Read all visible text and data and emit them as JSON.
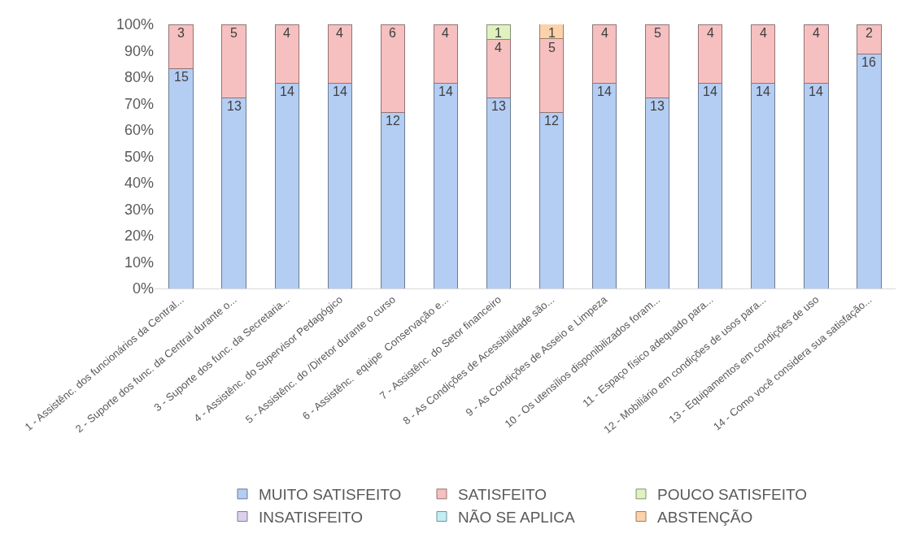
{
  "chart_data": {
    "type": "bar",
    "stacked": true,
    "categories": [
      "1 - Assistênc. dos funcionários da Central...",
      "2 - Suporte dos func. da Central durante o...",
      "3 - Suporte dos func. da Secretaria...",
      "4 - Assistênc. do Supervisor Pedagógico",
      "5 - Assistênc. do /Diretor durante o curso",
      "6 - Assistênc.  equipe  Conservação e...",
      "7 - Assistênc. do Setor financeiro",
      "8 - As Condições de Acessibilidade são...",
      "9 - As Condições de Asseio e Limpeza",
      "10 - Os utensílios disponibilizados foram...",
      "11 - Espaço físico adequado para...",
      "12 - Mobiliário em condições de usos para...",
      "13 - Equipamentos em condições de uso",
      "14 - Como você considera sua satisfação..."
    ],
    "series": [
      {
        "name": "MUITO SATISFEITO",
        "color": "#b4cdf3",
        "values": [
          83.3,
          72.2,
          77.8,
          77.8,
          66.7,
          77.8,
          72.2,
          66.7,
          77.8,
          72.2,
          77.8,
          77.8,
          77.8,
          88.9
        ]
      },
      {
        "name": "SATISFEITO",
        "color": "#f6c0c0",
        "values": [
          16.7,
          27.8,
          22.2,
          22.2,
          33.3,
          22.2,
          22.2,
          27.8,
          22.2,
          27.8,
          22.2,
          22.2,
          22.2,
          11.1
        ]
      },
      {
        "name": "POUCO SATISFEITO",
        "color": "#dff2c0",
        "values": [
          null,
          null,
          null,
          null,
          null,
          null,
          5.6,
          null,
          null,
          null,
          null,
          null,
          null,
          null
        ]
      },
      {
        "name": "INSATISFEITO",
        "color": "#dcd0ee",
        "values": [
          null,
          null,
          null,
          null,
          null,
          null,
          null,
          null,
          null,
          null,
          null,
          null,
          null,
          null
        ]
      },
      {
        "name": "NÃO SE APLICA",
        "color": "#c4eef6",
        "values": [
          null,
          null,
          null,
          null,
          null,
          null,
          null,
          null,
          null,
          null,
          null,
          null,
          null,
          null
        ]
      },
      {
        "name": "ABSTENÇÃO",
        "color": "#fcd2aa",
        "values": [
          null,
          null,
          null,
          null,
          null,
          null,
          null,
          5.6,
          null,
          null,
          null,
          null,
          null,
          null
        ]
      }
    ],
    "annotations": [
      {
        "text": "15",
        "x": "1 - Assistênc. dos funcionários da Central...",
        "y": 83.3
      },
      {
        "text": "3",
        "x": "1 - Assistênc. dos funcionários da Central...",
        "y": 100
      },
      {
        "text": "13",
        "x": "2 - Suporte dos func. da Central durante o...",
        "y": 72.2
      },
      {
        "text": "5",
        "x": "2 - Suporte dos func. da Central durante o...",
        "y": 100
      },
      {
        "text": "14",
        "x": "3 - Suporte dos func. da Secretaria...",
        "y": 77.8
      },
      {
        "text": "4",
        "x": "3 - Suporte dos func. da Secretaria...",
        "y": 100
      },
      {
        "text": "14",
        "x": "4 - Assistênc. do Supervisor Pedagógico",
        "y": 77.8
      },
      {
        "text": "4",
        "x": "4 - Assistênc. do Supervisor Pedagógico",
        "y": 100
      },
      {
        "text": "12",
        "x": "5 - Assistênc. do /Diretor durante o curso",
        "y": 66.7
      },
      {
        "text": "6",
        "x": "5 - Assistênc. do /Diretor durante o curso",
        "y": 100
      },
      {
        "text": "14",
        "x": "6 - Assistênc.  equipe  Conservação e...",
        "y": 77.8
      },
      {
        "text": "4",
        "x": "6 - Assistênc.  equipe  Conservação e...",
        "y": 100
      },
      {
        "text": "13",
        "x": "7 - Assistênc. do Setor financeiro",
        "y": 72.2
      },
      {
        "text": "4",
        "x": "7 - Assistênc. do Setor financeiro",
        "y": 94.4
      },
      {
        "text": "1",
        "x": "7 - Assistênc. do Setor financeiro",
        "y": 100
      },
      {
        "text": "12",
        "x": "8 - As Condições de Acessibilidade são...",
        "y": 66.7
      },
      {
        "text": "5",
        "x": "8 - As Condições de Acessibilidade são...",
        "y": 94.5
      },
      {
        "text": "1",
        "x": "8 - As Condições de Acessibilidade são...",
        "y": 100
      },
      {
        "text": "14",
        "x": "9 - As Condições de Asseio e Limpeza",
        "y": 77.8
      },
      {
        "text": "4",
        "x": "9 - As Condições de Asseio e Limpeza",
        "y": 100
      },
      {
        "text": "13",
        "x": "10 - Os utensílios disponibilizados foram...",
        "y": 72.2
      },
      {
        "text": "5",
        "x": "10 - Os utensílios disponibilizados foram...",
        "y": 100
      },
      {
        "text": "14",
        "x": "11 - Espaço físico adequado para...",
        "y": 77.8
      },
      {
        "text": "4",
        "x": "11 - Espaço físico adequado para...",
        "y": 100
      },
      {
        "text": "14",
        "x": "12 - Mobiliário em condições de usos para...",
        "y": 77.8
      },
      {
        "text": "4",
        "x": "12 - Mobiliário em condições de usos para...",
        "y": 100
      },
      {
        "text": "14",
        "x": "13 - Equipamentos em condições de uso",
        "y": 77.8
      },
      {
        "text": "4",
        "x": "13 - Equipamentos em condições de uso",
        "y": 100
      },
      {
        "text": "16",
        "x": "14 - Como você considera sua satisfação...",
        "y": 88.9
      },
      {
        "text": "2",
        "x": "14 - Como você considera sua satisfação...",
        "y": 100
      }
    ],
    "ylim": [
      0,
      100
    ],
    "yticks": [
      {
        "value": 0,
        "label": "0%"
      },
      {
        "value": 10,
        "label": "10%"
      },
      {
        "value": 20,
        "label": "20%"
      },
      {
        "value": 30,
        "label": "30%"
      },
      {
        "value": 40,
        "label": "40%"
      },
      {
        "value": 50,
        "label": "50%"
      },
      {
        "value": 60,
        "label": "60%"
      },
      {
        "value": 70,
        "label": "70%"
      },
      {
        "value": 80,
        "label": "80%"
      },
      {
        "value": 90,
        "label": "90%"
      },
      {
        "value": 100,
        "label": "100%"
      }
    ],
    "legend": "bottom"
  }
}
